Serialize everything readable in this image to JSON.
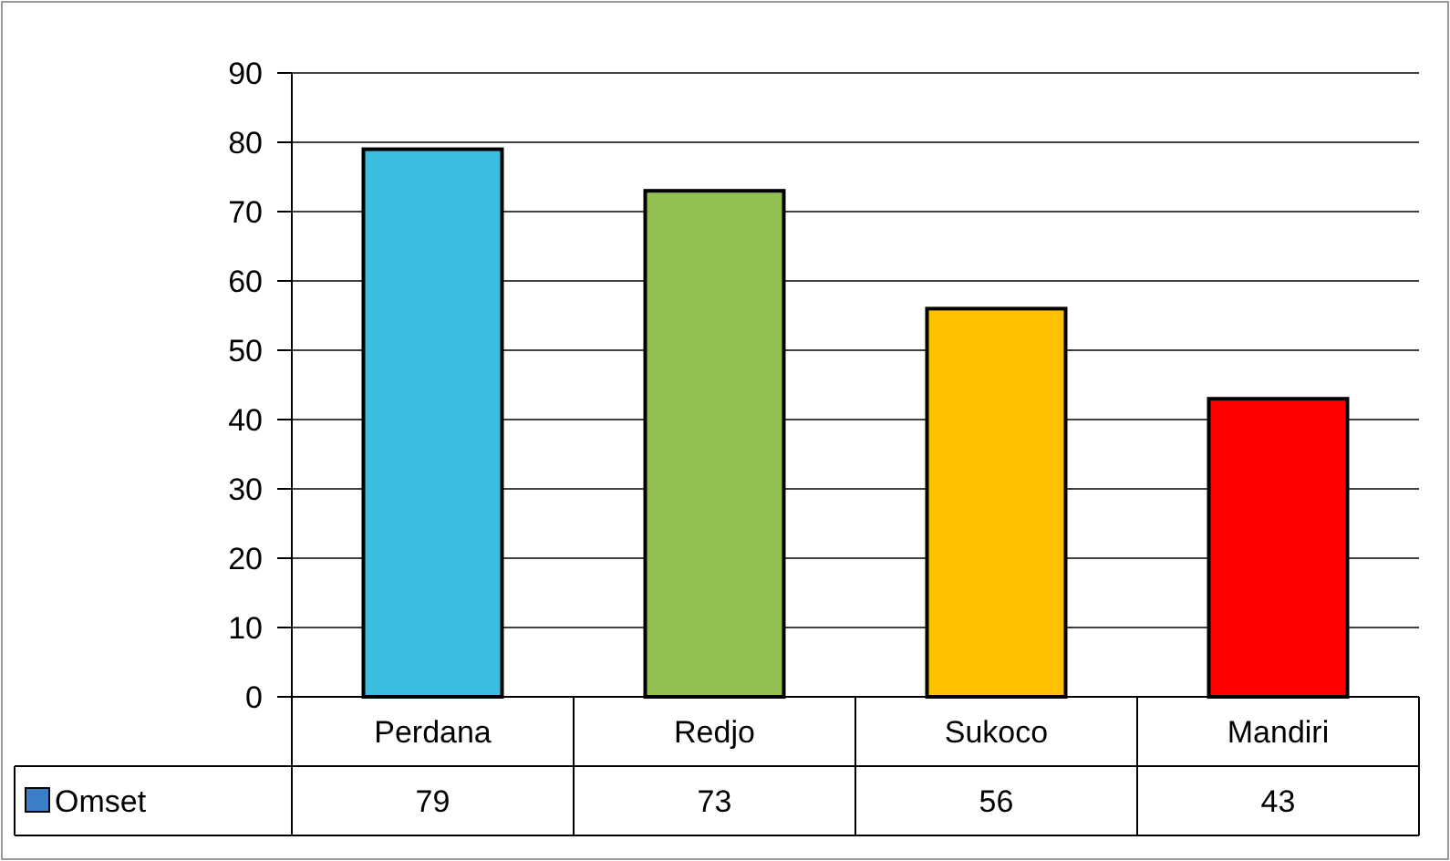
{
  "chart_data": {
    "type": "bar",
    "categories": [
      "Perdana",
      "Redjo",
      "Sukoco",
      "Mandiri"
    ],
    "series": [
      {
        "name": "Omset",
        "color": "#3a7fc8",
        "colors": [
          "#3bbde0",
          "#92c050",
          "#ffc000",
          "#ff0000"
        ],
        "values": [
          79,
          73,
          56,
          43
        ]
      }
    ],
    "ylim": [
      0,
      90
    ],
    "yticks": [
      0,
      10,
      20,
      30,
      40,
      50,
      60,
      70,
      80,
      90
    ],
    "grid": "y",
    "data_labels": true,
    "legend": "bottom"
  }
}
